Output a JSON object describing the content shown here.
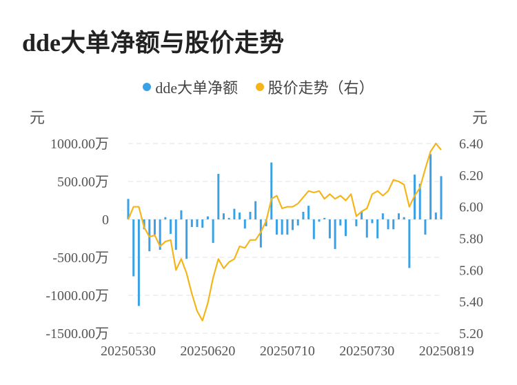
{
  "page": {
    "title": "dde大单净额与股价走势"
  },
  "colors": {
    "bar": "#3ba1e6",
    "line": "#f5b519",
    "grid": "#e6e6e6",
    "axis_text": "#555555"
  },
  "chart_data": {
    "type": "bar+line",
    "title": "dde大单净额与股价走势",
    "legend": [
      {
        "name": "dde大单净额",
        "color": "#3ba1e6"
      },
      {
        "name": "股价走势（右）",
        "color": "#f5b519"
      }
    ],
    "legend_position": "top-center",
    "y_left": {
      "unit": "元",
      "range": [
        -1500,
        1000
      ],
      "ticks": [
        1000,
        500,
        0,
        -500,
        -1000,
        -1500
      ],
      "tick_labels": [
        "1000.00万",
        "500.00万",
        "0",
        "-500.00万",
        "-1000.00万",
        "-1500.00万"
      ]
    },
    "y_right": {
      "unit": "元",
      "range": [
        5.2,
        6.4
      ],
      "ticks": [
        6.4,
        6.2,
        6.0,
        5.8,
        5.6,
        5.4,
        5.2
      ],
      "tick_labels": [
        "6.40",
        "6.20",
        "6.00",
        "5.80",
        "5.60",
        "5.40",
        "5.20"
      ]
    },
    "x_tick_labels": [
      {
        "index": 0,
        "label": "20250530"
      },
      {
        "index": 15,
        "label": "20250620"
      },
      {
        "index": 30,
        "label": "20250710"
      },
      {
        "index": 45,
        "label": "20250730"
      },
      {
        "index": 60,
        "label": "20250819"
      }
    ],
    "grid": true,
    "series": [
      {
        "name": "dde大单净额",
        "type": "bar",
        "axis": "left",
        "values": [
          270,
          -750,
          -1140,
          -130,
          -420,
          -200,
          -400,
          30,
          -190,
          -400,
          120,
          -520,
          -100,
          -100,
          -110,
          40,
          -310,
          600,
          80,
          20,
          140,
          90,
          -120,
          100,
          240,
          -370,
          -90,
          750,
          -200,
          -200,
          -200,
          -140,
          -80,
          100,
          180,
          -260,
          -30,
          20,
          -250,
          -390,
          -80,
          -220,
          0,
          -90,
          100,
          -240,
          -50,
          -250,
          80,
          -130,
          -130,
          80,
          30,
          -640,
          590,
          470,
          -200,
          860,
          90,
          570
        ],
        "note": "values in 万元"
      },
      {
        "name": "股价走势（右）",
        "type": "line",
        "axis": "right",
        "values": [
          5.92,
          6.0,
          6.0,
          5.87,
          5.81,
          5.82,
          5.75,
          5.78,
          5.79,
          5.6,
          5.67,
          5.58,
          5.45,
          5.34,
          5.28,
          5.39,
          5.55,
          5.67,
          5.61,
          5.65,
          5.67,
          5.75,
          5.74,
          5.79,
          5.79,
          5.84,
          5.91,
          6.05,
          6.07,
          5.99,
          6.0,
          6.0,
          6.02,
          6.06,
          6.1,
          6.09,
          6.1,
          6.05,
          6.08,
          6.05,
          6.07,
          6.04,
          6.08,
          5.94,
          5.97,
          5.99,
          6.08,
          6.1,
          6.07,
          6.1,
          6.17,
          6.16,
          6.14,
          6.0,
          6.07,
          6.12,
          6.24,
          6.35,
          6.4,
          6.36
        ]
      }
    ]
  }
}
